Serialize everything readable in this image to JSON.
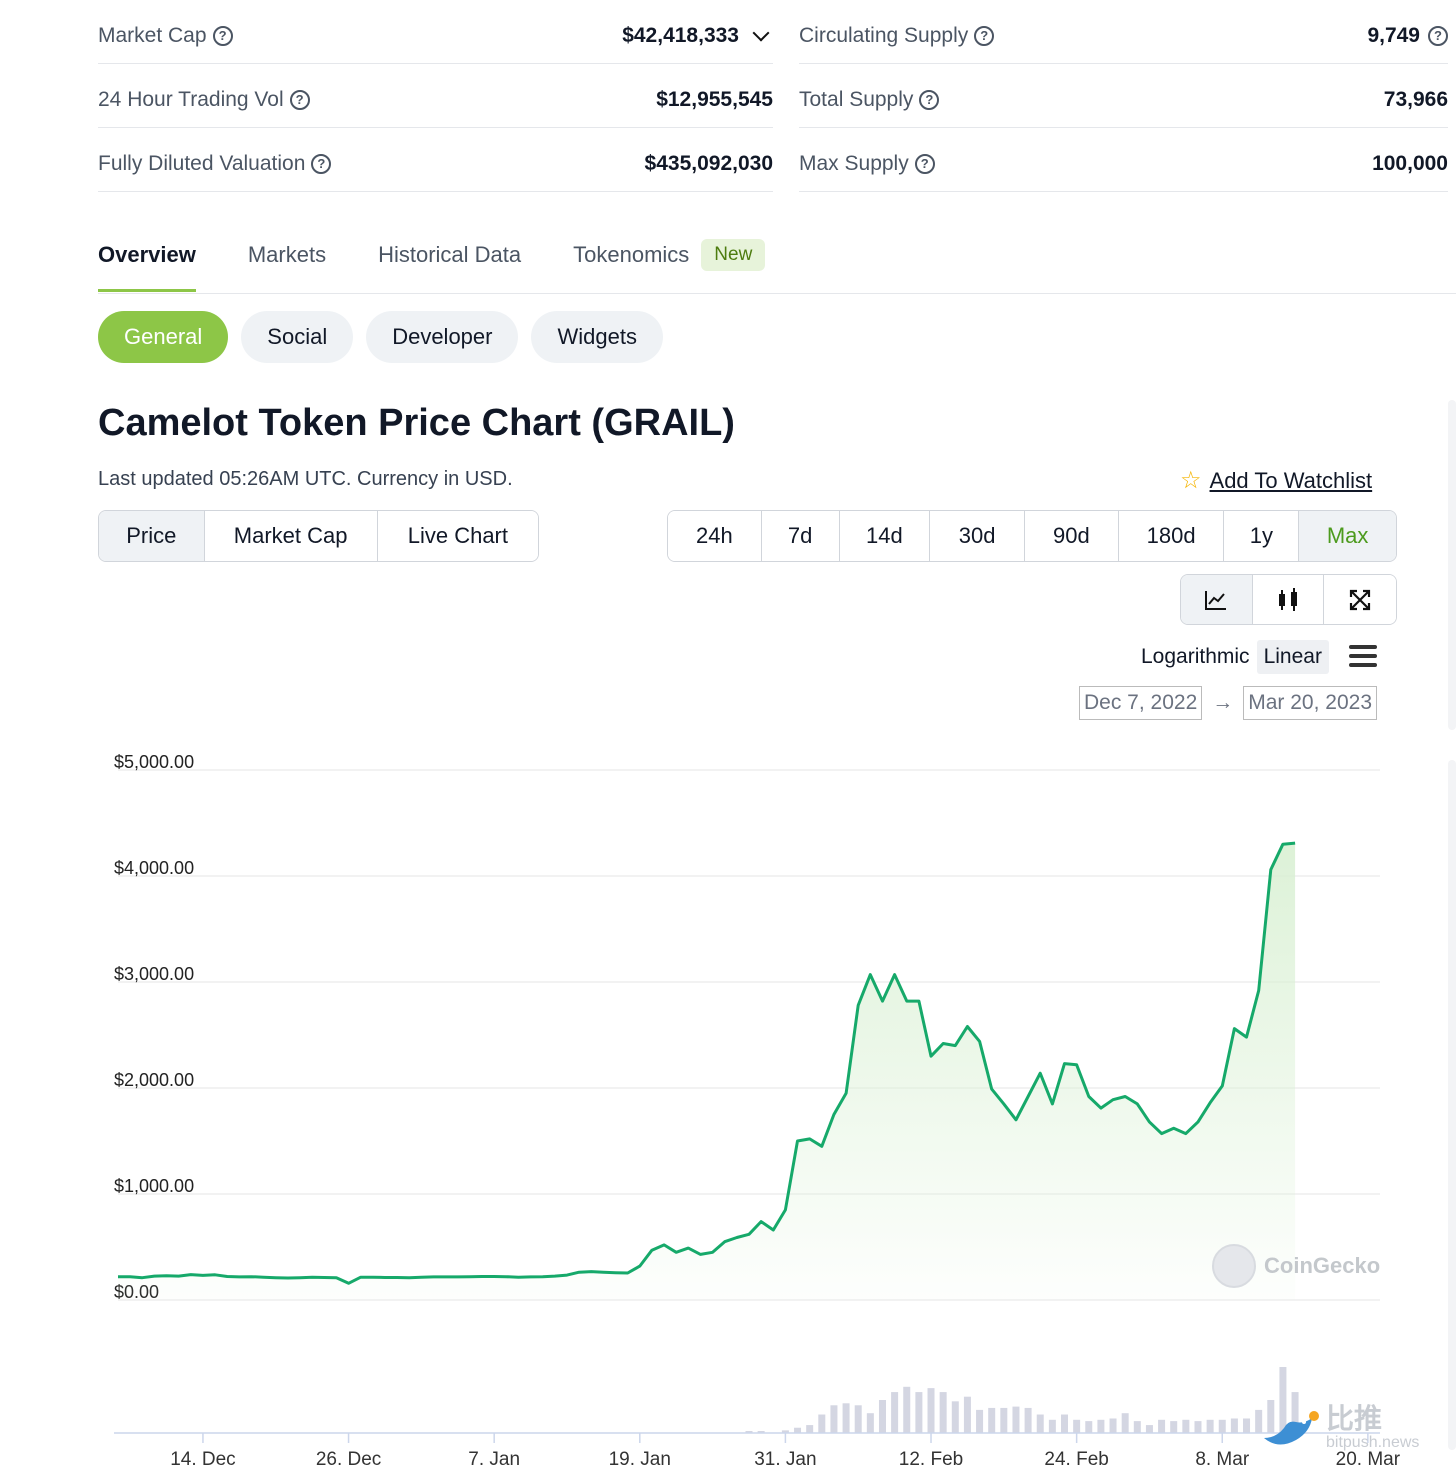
{
  "stats": {
    "left": [
      {
        "label": "Market Cap",
        "value": "$42,418,333",
        "dropdown": true
      },
      {
        "label": "24 Hour Trading Vol",
        "value": "$12,955,545"
      },
      {
        "label": "Fully Diluted Valuation",
        "value": "$435,092,030"
      }
    ],
    "right": [
      {
        "label": "Circulating Supply",
        "value": "9,749",
        "help_after_value": true
      },
      {
        "label": "Total Supply",
        "value": "73,966"
      },
      {
        "label": "Max Supply",
        "value": "100,000"
      }
    ],
    "help_glyph": "?"
  },
  "tabs": [
    {
      "label": "Overview",
      "active": true
    },
    {
      "label": "Markets"
    },
    {
      "label": "Historical Data"
    },
    {
      "label": "Tokenomics",
      "badge": "New"
    }
  ],
  "subtabs": [
    {
      "label": "General",
      "active": true
    },
    {
      "label": "Social"
    },
    {
      "label": "Developer"
    },
    {
      "label": "Widgets"
    }
  ],
  "title": "Camelot Token Price Chart (GRAIL)",
  "updated": "Last updated 05:26AM UTC. Currency in USD.",
  "watchlist": {
    "label": "Add To Watchlist",
    "icon": "star-icon"
  },
  "chart_types": [
    {
      "label": "Price",
      "active": true
    },
    {
      "label": "Market Cap"
    },
    {
      "label": "Live Chart"
    }
  ],
  "ranges": [
    {
      "label": "24h"
    },
    {
      "label": "7d"
    },
    {
      "label": "14d"
    },
    {
      "label": "30d"
    },
    {
      "label": "90d"
    },
    {
      "label": "180d"
    },
    {
      "label": "1y"
    },
    {
      "label": "Max",
      "active": true
    }
  ],
  "view_icons": [
    "line-chart-icon",
    "candlestick-icon",
    "fullscreen-icon"
  ],
  "scale": {
    "log_label": "Logarithmic",
    "linear_label": "Linear",
    "active": "linear"
  },
  "date_range": {
    "from": "Dec 7, 2022",
    "arrow": "→",
    "to": "Mar 20, 2023"
  },
  "watermark": "CoinGecko",
  "bitpush": {
    "cn": "比推",
    "url": "bitpush.news"
  },
  "colors": {
    "accent_green": "#8dc647",
    "line": "#16a96a",
    "area_fill": "#d9f0d3",
    "volume": "#d4d6e2"
  },
  "chart_data": {
    "type": "area",
    "ylim": [
      0,
      5000
    ],
    "y_ticks": [
      "$0.00",
      "$1,000.00",
      "$2,000.00",
      "$3,000.00",
      "$4,000.00",
      "$5,000.00"
    ],
    "y_tick_values": [
      0,
      1000,
      2000,
      3000,
      4000,
      5000
    ],
    "x_ticks": [
      "14. Dec",
      "26. Dec",
      "7. Jan",
      "19. Jan",
      "31. Jan",
      "12. Feb",
      "24. Feb",
      "8. Mar",
      "20. Mar"
    ],
    "x_tick_days": [
      7,
      19,
      31,
      43,
      55,
      67,
      79,
      91,
      103
    ],
    "x_domain_days": [
      0,
      104
    ],
    "series": [
      {
        "values": [
          [
            0,
            220
          ],
          [
            1,
            220
          ],
          [
            2,
            210
          ],
          [
            3,
            225
          ],
          [
            4,
            228
          ],
          [
            5,
            225
          ],
          [
            6,
            240
          ],
          [
            7,
            232
          ],
          [
            8,
            238
          ],
          [
            9,
            222
          ],
          [
            10,
            218
          ],
          [
            11,
            220
          ],
          [
            12,
            215
          ],
          [
            13,
            210
          ],
          [
            14,
            208
          ],
          [
            15,
            210
          ],
          [
            16,
            215
          ],
          [
            17,
            212
          ],
          [
            18,
            210
          ],
          [
            19,
            158
          ],
          [
            20,
            215
          ],
          [
            21,
            215
          ],
          [
            22,
            212
          ],
          [
            23,
            212
          ],
          [
            24,
            210
          ],
          [
            25,
            215
          ],
          [
            26,
            218
          ],
          [
            27,
            218
          ],
          [
            28,
            218
          ],
          [
            29,
            220
          ],
          [
            30,
            222
          ],
          [
            31,
            222
          ],
          [
            32,
            220
          ],
          [
            33,
            215
          ],
          [
            34,
            218
          ],
          [
            35,
            220
          ],
          [
            36,
            225
          ],
          [
            37,
            235
          ],
          [
            38,
            262
          ],
          [
            39,
            268
          ],
          [
            40,
            262
          ],
          [
            41,
            258
          ],
          [
            42,
            255
          ],
          [
            43,
            320
          ],
          [
            44,
            470
          ],
          [
            45,
            520
          ],
          [
            46,
            450
          ],
          [
            47,
            490
          ],
          [
            48,
            430
          ],
          [
            49,
            450
          ],
          [
            50,
            550
          ],
          [
            51,
            590
          ],
          [
            52,
            620
          ],
          [
            53,
            740
          ],
          [
            54,
            660
          ],
          [
            55,
            850
          ],
          [
            56,
            1500
          ],
          [
            57,
            1520
          ],
          [
            58,
            1450
          ],
          [
            59,
            1750
          ],
          [
            60,
            1950
          ],
          [
            61,
            2780
          ],
          [
            62,
            3070
          ],
          [
            63,
            2820
          ],
          [
            64,
            3070
          ],
          [
            65,
            2820
          ],
          [
            66,
            2820
          ],
          [
            67,
            2300
          ],
          [
            68,
            2420
          ],
          [
            69,
            2400
          ],
          [
            70,
            2580
          ],
          [
            71,
            2440
          ],
          [
            72,
            1990
          ],
          [
            73,
            1850
          ],
          [
            74,
            1700
          ],
          [
            75,
            1920
          ],
          [
            76,
            2140
          ],
          [
            77,
            1850
          ],
          [
            78,
            2230
          ],
          [
            79,
            2220
          ],
          [
            80,
            1920
          ],
          [
            81,
            1810
          ],
          [
            82,
            1890
          ],
          [
            83,
            1920
          ],
          [
            84,
            1850
          ],
          [
            85,
            1680
          ],
          [
            86,
            1570
          ],
          [
            87,
            1620
          ],
          [
            88,
            1570
          ],
          [
            89,
            1680
          ],
          [
            90,
            1860
          ],
          [
            91,
            2020
          ],
          [
            92,
            2560
          ],
          [
            93,
            2480
          ],
          [
            94,
            2920
          ],
          [
            95,
            4060
          ],
          [
            96,
            4300
          ],
          [
            97,
            4310
          ]
        ]
      }
    ],
    "volume_relative": [
      [
        52,
        0.02
      ],
      [
        53,
        0.02
      ],
      [
        55,
        0.04
      ],
      [
        56,
        0.08
      ],
      [
        57,
        0.12
      ],
      [
        58,
        0.28
      ],
      [
        59,
        0.42
      ],
      [
        60,
        0.45
      ],
      [
        61,
        0.42
      ],
      [
        62,
        0.3
      ],
      [
        63,
        0.5
      ],
      [
        64,
        0.62
      ],
      [
        65,
        0.7
      ],
      [
        66,
        0.62
      ],
      [
        67,
        0.68
      ],
      [
        68,
        0.62
      ],
      [
        69,
        0.48
      ],
      [
        70,
        0.55
      ],
      [
        71,
        0.35
      ],
      [
        72,
        0.38
      ],
      [
        73,
        0.38
      ],
      [
        74,
        0.4
      ],
      [
        75,
        0.38
      ],
      [
        76,
        0.28
      ],
      [
        77,
        0.2
      ],
      [
        78,
        0.28
      ],
      [
        79,
        0.2
      ],
      [
        80,
        0.18
      ],
      [
        81,
        0.2
      ],
      [
        82,
        0.22
      ],
      [
        83,
        0.3
      ],
      [
        84,
        0.18
      ],
      [
        85,
        0.12
      ],
      [
        86,
        0.2
      ],
      [
        87,
        0.18
      ],
      [
        88,
        0.2
      ],
      [
        89,
        0.18
      ],
      [
        90,
        0.2
      ],
      [
        91,
        0.2
      ],
      [
        92,
        0.22
      ],
      [
        93,
        0.22
      ],
      [
        94,
        0.35
      ],
      [
        95,
        0.5
      ],
      [
        96,
        1.0
      ],
      [
        97,
        0.62
      ]
    ]
  }
}
